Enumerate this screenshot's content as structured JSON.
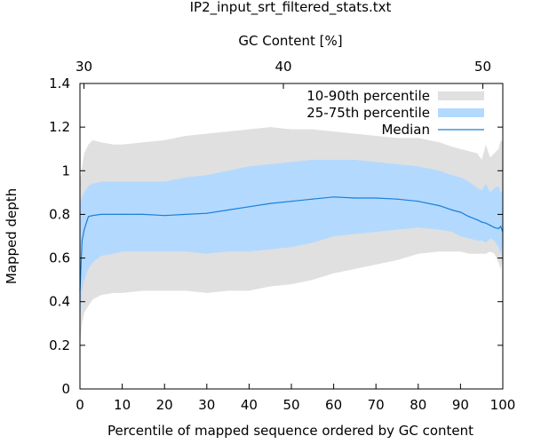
{
  "chart_data": {
    "type": "area",
    "title": "IP2_input_srt_filtered_stats.txt",
    "xlabel": "Percentile of mapped sequence ordered by GC content",
    "ylabel": "Mapped depth",
    "x2label": "GC Content [%]",
    "xlim": [
      0,
      100
    ],
    "ylim": [
      0,
      1.4
    ],
    "x2lim": [
      29.8,
      51.0
    ],
    "xticks": [
      "0",
      "10",
      "20",
      "30",
      "40",
      "50",
      "60",
      "70",
      "80",
      "90",
      "100"
    ],
    "yticks": [
      "0",
      "0.2",
      "0.4",
      "0.6",
      "0.8",
      "1",
      "1.2",
      "1.4"
    ],
    "x2ticks": [
      {
        "value": 30,
        "label": "30"
      },
      {
        "value": 40,
        "label": "40"
      },
      {
        "value": 50,
        "label": "50"
      }
    ],
    "grid": false,
    "legend_position": "top-right",
    "series": [
      {
        "name": "10-90th percentile",
        "kind": "band",
        "color": "#e0e0e0",
        "x": [
          0,
          0.5,
          1,
          2,
          3,
          5,
          8,
          10,
          15,
          20,
          25,
          30,
          35,
          40,
          45,
          50,
          55,
          60,
          65,
          70,
          75,
          80,
          85,
          88,
          90,
          92,
          94,
          95,
          96,
          97,
          98,
          99,
          99.5,
          100
        ],
        "low": [
          0.2,
          0.3,
          0.35,
          0.38,
          0.41,
          0.43,
          0.44,
          0.44,
          0.45,
          0.45,
          0.45,
          0.44,
          0.45,
          0.45,
          0.47,
          0.48,
          0.5,
          0.53,
          0.55,
          0.57,
          0.59,
          0.62,
          0.63,
          0.63,
          0.63,
          0.62,
          0.62,
          0.62,
          0.62,
          0.63,
          0.62,
          0.58,
          0.55,
          0.6
        ],
        "high": [
          0.95,
          1.02,
          1.08,
          1.12,
          1.14,
          1.13,
          1.12,
          1.12,
          1.13,
          1.14,
          1.16,
          1.17,
          1.18,
          1.19,
          1.2,
          1.19,
          1.19,
          1.18,
          1.17,
          1.16,
          1.15,
          1.15,
          1.13,
          1.11,
          1.1,
          1.09,
          1.08,
          1.05,
          1.12,
          1.06,
          1.08,
          1.1,
          1.14,
          1.13
        ]
      },
      {
        "name": "25-75th percentile",
        "kind": "band",
        "color": "#b3d9ff",
        "x": [
          0,
          0.5,
          1,
          2,
          3,
          5,
          8,
          10,
          15,
          20,
          25,
          30,
          35,
          40,
          45,
          50,
          55,
          60,
          65,
          70,
          75,
          80,
          85,
          88,
          90,
          92,
          94,
          95,
          96,
          97,
          98,
          99,
          99.5,
          100
        ],
        "low": [
          0.3,
          0.45,
          0.5,
          0.55,
          0.58,
          0.61,
          0.62,
          0.63,
          0.63,
          0.63,
          0.63,
          0.62,
          0.63,
          0.63,
          0.64,
          0.65,
          0.67,
          0.7,
          0.71,
          0.72,
          0.73,
          0.74,
          0.73,
          0.72,
          0.7,
          0.69,
          0.68,
          0.68,
          0.67,
          0.69,
          0.68,
          0.65,
          0.62,
          0.66
        ],
        "high": [
          0.85,
          0.88,
          0.9,
          0.93,
          0.94,
          0.95,
          0.95,
          0.95,
          0.95,
          0.95,
          0.97,
          0.98,
          1.0,
          1.02,
          1.03,
          1.04,
          1.05,
          1.05,
          1.05,
          1.04,
          1.03,
          1.02,
          1.0,
          0.98,
          0.97,
          0.95,
          0.92,
          0.91,
          0.94,
          0.9,
          0.92,
          0.93,
          0.9,
          0.91
        ]
      },
      {
        "name": "Median",
        "kind": "line",
        "color": "#1a7fd6",
        "x": [
          0,
          0.5,
          1,
          2,
          3,
          5,
          8,
          10,
          15,
          20,
          25,
          30,
          35,
          40,
          45,
          50,
          55,
          60,
          65,
          70,
          75,
          80,
          85,
          88,
          90,
          92,
          94,
          95,
          96,
          97,
          98,
          99,
          99.5,
          100
        ],
        "values": [
          0.45,
          0.68,
          0.73,
          0.79,
          0.795,
          0.8,
          0.8,
          0.8,
          0.8,
          0.795,
          0.8,
          0.805,
          0.82,
          0.835,
          0.85,
          0.86,
          0.87,
          0.88,
          0.875,
          0.875,
          0.87,
          0.86,
          0.84,
          0.82,
          0.81,
          0.79,
          0.775,
          0.765,
          0.76,
          0.75,
          0.74,
          0.735,
          0.745,
          0.72
        ]
      }
    ]
  }
}
